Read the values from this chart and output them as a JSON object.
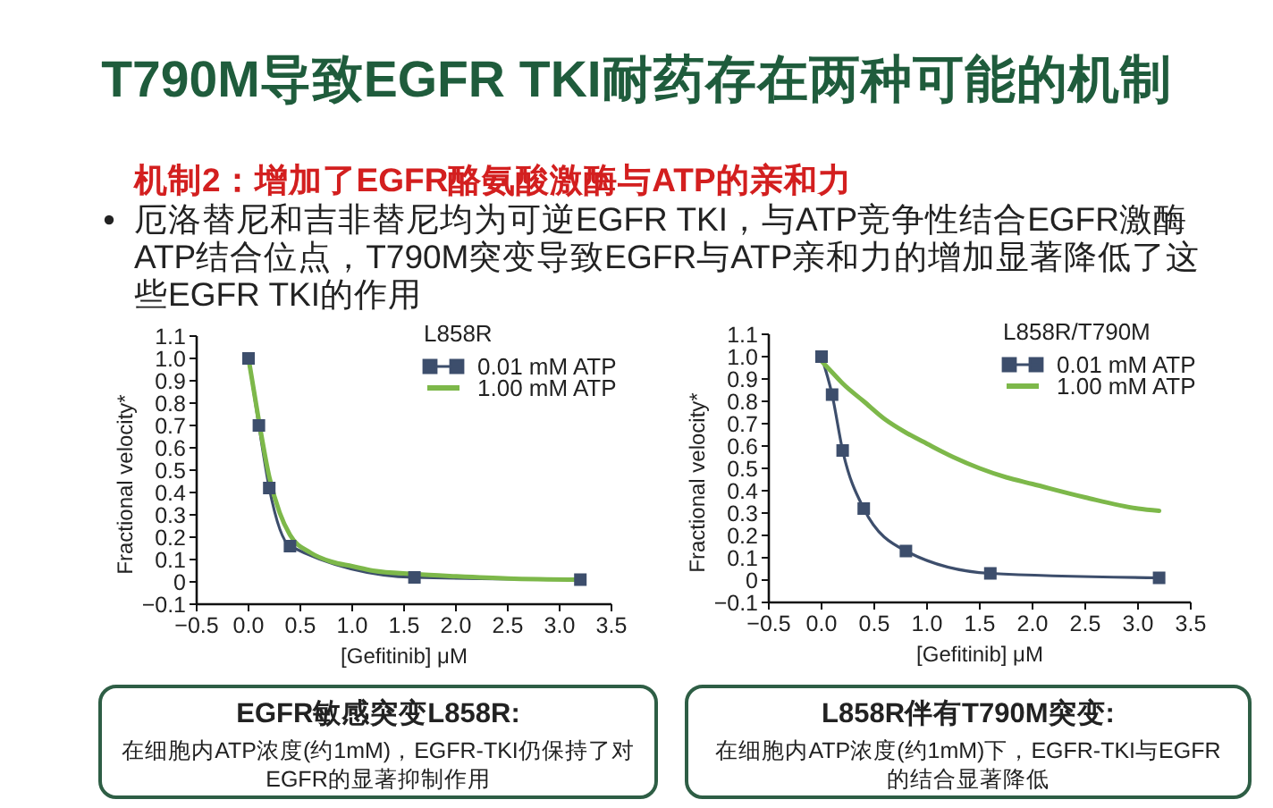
{
  "chart_data": [
    {
      "type": "other",
      "title": "T790M导致EGFR TKI耐药存在两种可能的机制",
      "subtitle": "机制2：增加了EGFR酪氨酸激酶与ATP的亲和力",
      "annotations": [
        "厄洛替尼和吉非替尼均为可逆EGFR TKI，与ATP竞争性结合EGFR激酶ATP结合位点，T790M突变导致EGFR与ATP亲和力的增加显著降低了这些EGFR TKI的作用"
      ]
    },
    {
      "type": "line",
      "xlabel": "[Gefitinib] μM",
      "ylabel": "Fractional velocity*",
      "legend_title": "L858R",
      "legend": "top right",
      "marker": "square",
      "xlim": [
        -0.5,
        3.5
      ],
      "xticks": [
        -0.5,
        {
          "value": 0,
          "label": "0.0"
        },
        0.5,
        {
          "value": 1,
          "label": "1.0"
        },
        1.5,
        {
          "value": 2,
          "label": "2.0"
        },
        2.5,
        {
          "value": 3,
          "label": "3.0"
        },
        3.5
      ],
      "ylim": [
        -0.1,
        1.1
      ],
      "yticks": [
        -0.1,
        0,
        0.1,
        0.2,
        0.3,
        0.4,
        0.5,
        0.6,
        0.7,
        0.8,
        0.9,
        {
          "value": 1,
          "label": "1.0"
        },
        1.1
      ],
      "series": [
        {
          "name": "0.01 mM ATP",
          "color": "#3d4e6c",
          "x": [
            0,
            0.1,
            0.2,
            0.4,
            1.6,
            3.2
          ],
          "values": [
            1.0,
            0.7,
            0.42,
            0.16,
            0.02,
            0.01
          ]
        },
        {
          "name": "1.00 mM ATP",
          "color": "#7db84a",
          "marker": "none",
          "x": [
            0,
            0.1,
            0.2,
            0.3,
            0.4,
            0.6,
            0.8,
            1.0,
            1.2,
            1.6,
            2.0,
            2.5,
            3.2
          ],
          "values": [
            1.0,
            0.72,
            0.47,
            0.31,
            0.21,
            0.13,
            0.09,
            0.07,
            0.05,
            0.035,
            0.025,
            0.015,
            0.01
          ]
        }
      ],
      "annotations": [
        "EGFR敏感突变L858R:",
        "在细胞内ATP浓度(约1mM)，EGFR-TKI仍保持了对EGFR的显著抑制作用"
      ]
    },
    {
      "type": "line",
      "xlabel": "[Gefitinib] μM",
      "ylabel": "Fractional velocity*",
      "legend_title": "L858R/T790M",
      "legend": "top right",
      "marker": "square",
      "xlim": [
        -0.5,
        3.5
      ],
      "xticks": [
        -0.5,
        {
          "value": 0,
          "label": "0.0"
        },
        0.5,
        {
          "value": 1,
          "label": "1.0"
        },
        1.5,
        {
          "value": 2,
          "label": "2.0"
        },
        2.5,
        {
          "value": 3,
          "label": "3.0"
        },
        3.5
      ],
      "ylim": [
        -0.1,
        1.1
      ],
      "yticks": [
        -0.1,
        0,
        0.1,
        0.2,
        0.3,
        0.4,
        0.5,
        0.6,
        0.7,
        0.8,
        0.9,
        {
          "value": 1,
          "label": "1.0"
        },
        1.1
      ],
      "series": [
        {
          "name": "0.01 mM ATP",
          "color": "#3d4e6c",
          "x": [
            0,
            0.1,
            0.2,
            0.4,
            0.8,
            1.6,
            3.2
          ],
          "values": [
            1.0,
            0.83,
            0.58,
            0.32,
            0.13,
            0.03,
            0.01
          ]
        },
        {
          "name": "1.00 mM ATP",
          "color": "#7db84a",
          "marker": "none",
          "x": [
            0,
            0.1,
            0.2,
            0.4,
            0.6,
            0.8,
            1.0,
            1.25,
            1.5,
            1.75,
            2.0,
            2.5,
            3.0,
            3.2
          ],
          "values": [
            0.98,
            0.93,
            0.88,
            0.8,
            0.72,
            0.66,
            0.61,
            0.55,
            0.5,
            0.46,
            0.43,
            0.37,
            0.32,
            0.31
          ]
        }
      ],
      "annotations": [
        "L858R伴有T790M突变:",
        "在细胞内ATP浓度(约1mM)下，EGFR-TKI与EGFR的结合显著降低"
      ]
    }
  ]
}
